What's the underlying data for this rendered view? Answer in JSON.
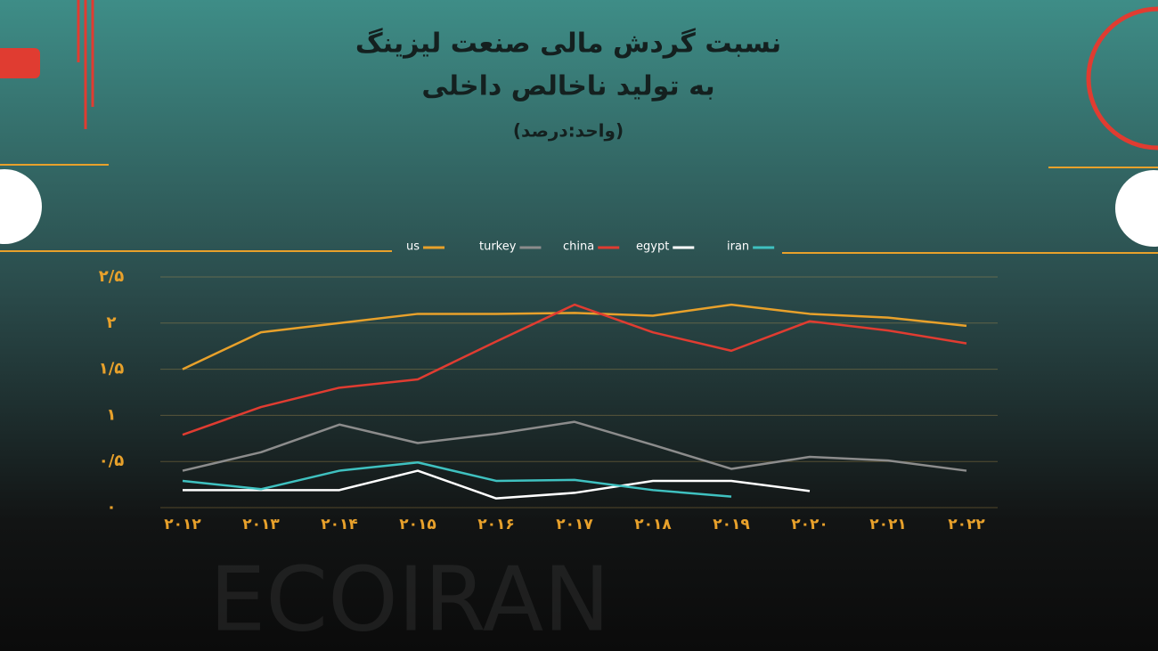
{
  "chart_data": {
    "type": "line",
    "title": "نسبت گردش مالی صنعت لیزینگ",
    "subtitle": "به تولید ناخالص داخلی",
    "unit_note": "(واحد:درصد)",
    "watermark": "ECOIRAN",
    "categories": [
      "۲۰۱۲",
      "۲۰۱۳",
      "۲۰۱۴",
      "۲۰۱۵",
      "۲۰۱۶",
      "۲۰۱۷",
      "۲۰۱۸",
      "۲۰۱۹",
      "۲۰۲۰",
      "۲۰۲۱",
      "۲۰۲۲"
    ],
    "series": [
      {
        "name": "us",
        "color": "#e8a12b",
        "values": [
          1.5,
          1.9,
          2.0,
          2.1,
          2.1,
          2.11,
          2.08,
          2.2,
          2.1,
          2.06,
          1.97
        ]
      },
      {
        "name": "turkey",
        "color": "#8c8c8c",
        "values": [
          0.4,
          0.6,
          0.9,
          0.7,
          0.8,
          0.93,
          0.68,
          0.42,
          0.55,
          0.51,
          0.4
        ]
      },
      {
        "name": "china",
        "color": "#e03c31",
        "values": [
          0.79,
          1.09,
          1.3,
          1.39,
          1.8,
          2.2,
          1.9,
          1.7,
          2.02,
          1.92,
          1.78
        ]
      },
      {
        "name": "egypt",
        "color": "#ffffff",
        "values": [
          0.19,
          0.19,
          0.19,
          0.4,
          0.1,
          0.16,
          0.29,
          0.29,
          0.18,
          null,
          null
        ]
      },
      {
        "name": "iran",
        "color": "#3fc1c0",
        "values": [
          0.29,
          0.2,
          0.4,
          0.49,
          0.29,
          0.3,
          0.19,
          0.12,
          null,
          null,
          null
        ]
      }
    ],
    "ylim": [
      0,
      2.5
    ],
    "yticks": [
      {
        "value": 0,
        "label": "۰"
      },
      {
        "value": 0.5,
        "label": "۰/۵"
      },
      {
        "value": 1,
        "label": "۱"
      },
      {
        "value": 1.5,
        "label": "۱/۵"
      },
      {
        "value": 2,
        "label": "۲"
      },
      {
        "value": 2.5,
        "label": "۲/۵"
      }
    ],
    "grid": true,
    "legend": "top"
  }
}
